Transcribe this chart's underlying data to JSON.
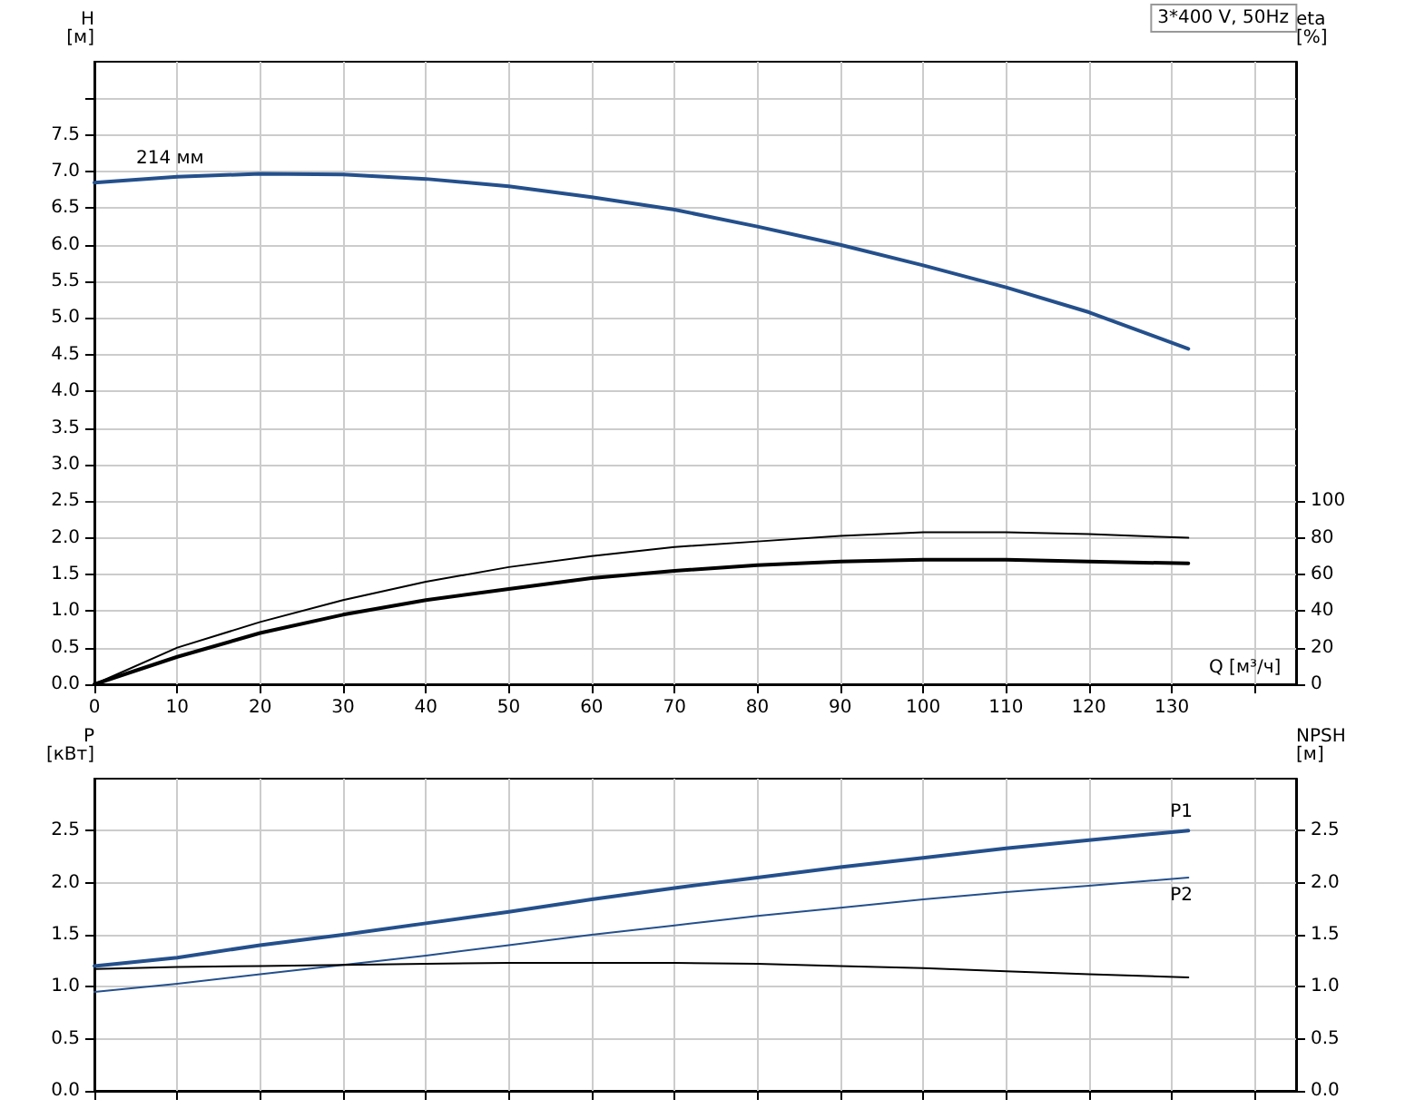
{
  "chart_data": [
    {
      "type": "line",
      "xlabel": "Q [м³/ч]",
      "ylabel": "H [м]",
      "y2label": "eta [%]",
      "annotations": [
        "3*400 V, 50Hz"
      ],
      "grid": true,
      "legend": false,
      "marker": "none",
      "x": [
        0,
        10,
        20,
        30,
        40,
        50,
        60,
        70,
        80,
        90,
        100,
        110,
        120,
        132
      ],
      "xlim": [
        0,
        145
      ],
      "xticks": [
        0,
        10,
        20,
        30,
        40,
        50,
        60,
        70,
        80,
        90,
        100,
        110,
        120,
        130,
        {
          "value": 140,
          "label": null
        }
      ],
      "ylim": [
        0,
        8.5
      ],
      "yticks": [
        {
          "value": 0,
          "label": "0.0"
        },
        {
          "value": 0.5,
          "label": "0.5"
        },
        {
          "value": 1,
          "label": "1.0"
        },
        {
          "value": 1.5,
          "label": "1.5"
        },
        {
          "value": 2,
          "label": "2.0"
        },
        {
          "value": 2.5,
          "label": "2.5"
        },
        {
          "value": 3,
          "label": "3.0"
        },
        {
          "value": 3.5,
          "label": "3.5"
        },
        {
          "value": 4,
          "label": "4.0"
        },
        {
          "value": 4.5,
          "label": "4.5"
        },
        {
          "value": 5,
          "label": "5.0"
        },
        {
          "value": 5.5,
          "label": "5.5"
        },
        {
          "value": 6,
          "label": "6.0"
        },
        {
          "value": 6.5,
          "label": "6.5"
        },
        {
          "value": 7,
          "label": "7.0"
        },
        {
          "value": 7.5,
          "label": "7.5"
        },
        {
          "value": 8,
          "label": null
        }
      ],
      "y2lim": [
        0,
        340
      ],
      "y2ticks": [
        0,
        20,
        40,
        60,
        80,
        100
      ],
      "series": [
        {
          "name": "214 мм",
          "color": "#24508c",
          "values": [
            6.85,
            6.93,
            6.97,
            6.96,
            6.9,
            6.8,
            6.65,
            6.48,
            6.25,
            6.0,
            5.72,
            5.42,
            5.08,
            4.58
          ]
        },
        {
          "color": "#000000",
          "axis": "y2",
          "values": [
            0,
            20,
            34,
            46,
            56,
            64,
            70,
            75,
            78,
            81,
            83,
            83,
            82,
            80
          ]
        },
        {
          "color": "#000000",
          "axis": "y2",
          "values": [
            0,
            15,
            28,
            38,
            46,
            52,
            58,
            62,
            65,
            67,
            68,
            68,
            67,
            66
          ]
        }
      ]
    },
    {
      "type": "line",
      "ylabel": "P [кВт]",
      "y2label": "NPSH [м]",
      "grid": true,
      "legend": false,
      "marker": "none",
      "tick_labels": "y",
      "x": [
        0,
        10,
        20,
        30,
        40,
        50,
        60,
        70,
        80,
        90,
        100,
        110,
        120,
        132
      ],
      "xlim": [
        0,
        145
      ],
      "xticks": [
        0,
        10,
        20,
        30,
        40,
        50,
        60,
        70,
        80,
        90,
        100,
        110,
        120,
        130,
        {
          "value": 140,
          "label": null
        }
      ],
      "ylim": [
        0,
        3
      ],
      "yticks": [
        {
          "value": 0,
          "label": "0.0"
        },
        {
          "value": 0.5,
          "label": "0.5"
        },
        {
          "value": 1,
          "label": "1.0"
        },
        {
          "value": 1.5,
          "label": "1.5"
        },
        {
          "value": 2,
          "label": "2.0"
        },
        {
          "value": 2.5,
          "label": "2.5"
        }
      ],
      "y2lim": [
        0,
        3
      ],
      "y2ticks": [
        {
          "value": 0,
          "label": "0.0"
        },
        {
          "value": 0.5,
          "label": "0.5"
        },
        {
          "value": 1,
          "label": "1.0"
        },
        {
          "value": 1.5,
          "label": "1.5"
        },
        {
          "value": 2,
          "label": "2.0"
        },
        {
          "value": 2.5,
          "label": "2.5"
        }
      ],
      "series": [
        {
          "name": "P1",
          "color": "#24508c",
          "values": [
            1.2,
            1.28,
            1.4,
            1.5,
            1.61,
            1.72,
            1.84,
            1.95,
            2.05,
            2.15,
            2.24,
            2.33,
            2.41,
            2.5
          ]
        },
        {
          "name": "P2",
          "color": "#24508c",
          "values": [
            0.95,
            1.03,
            1.12,
            1.21,
            1.3,
            1.4,
            1.5,
            1.59,
            1.68,
            1.76,
            1.84,
            1.91,
            1.97,
            2.05
          ]
        },
        {
          "color": "#000000",
          "axis": "y2",
          "values": [
            1.17,
            1.19,
            1.2,
            1.21,
            1.22,
            1.23,
            1.23,
            1.23,
            1.22,
            1.2,
            1.18,
            1.15,
            1.12,
            1.09
          ]
        }
      ]
    }
  ]
}
